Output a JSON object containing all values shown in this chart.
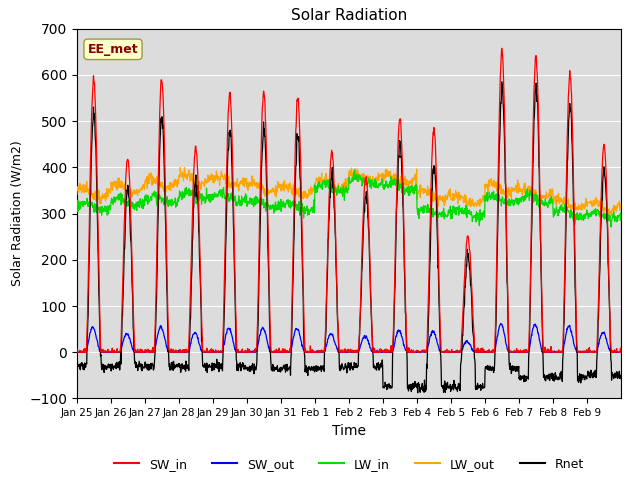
{
  "title": "Solar Radiation",
  "xlabel": "Time",
  "ylabel": "Solar Radiation (W/m2)",
  "ylim": [
    -100,
    700
  ],
  "yticks": [
    -100,
    0,
    100,
    200,
    300,
    400,
    500,
    600,
    700
  ],
  "x_labels": [
    "Jan 25",
    "Jan 26",
    "Jan 27",
    "Jan 28",
    "Jan 29",
    "Jan 30",
    "Jan 31",
    "Feb 1",
    "Feb 2",
    "Feb 3",
    "Feb 4",
    "Feb 5",
    "Feb 6",
    "Feb 7",
    "Feb 8",
    "Feb 9"
  ],
  "annotation": "EE_met",
  "annotation_color": "#8B0000",
  "annotation_bg": "#FFFFCC",
  "bg_color": "#DCDCDC",
  "line_colors": {
    "SW_in": "#FF0000",
    "SW_out": "#0000FF",
    "LW_in": "#00DD00",
    "LW_out": "#FFA500",
    "Rnet": "#000000"
  },
  "n_days": 16,
  "pts_per_day": 96,
  "sw_in_peaks": [
    590,
    420,
    590,
    445,
    560,
    560,
    550,
    435,
    380,
    505,
    480,
    250,
    650,
    640,
    600,
    450
  ],
  "lw_in_base": [
    315,
    325,
    330,
    340,
    335,
    320,
    315,
    355,
    370,
    360,
    305,
    300,
    330,
    330,
    300,
    295
  ],
  "lw_out_base": [
    345,
    355,
    365,
    375,
    370,
    355,
    350,
    365,
    380,
    375,
    340,
    330,
    355,
    345,
    320,
    315
  ],
  "rnet_night": [
    -30,
    -30,
    -30,
    -30,
    -30,
    -35,
    -35,
    -35,
    -30,
    -75,
    -75,
    -75,
    -35,
    -55,
    -55,
    -50
  ]
}
